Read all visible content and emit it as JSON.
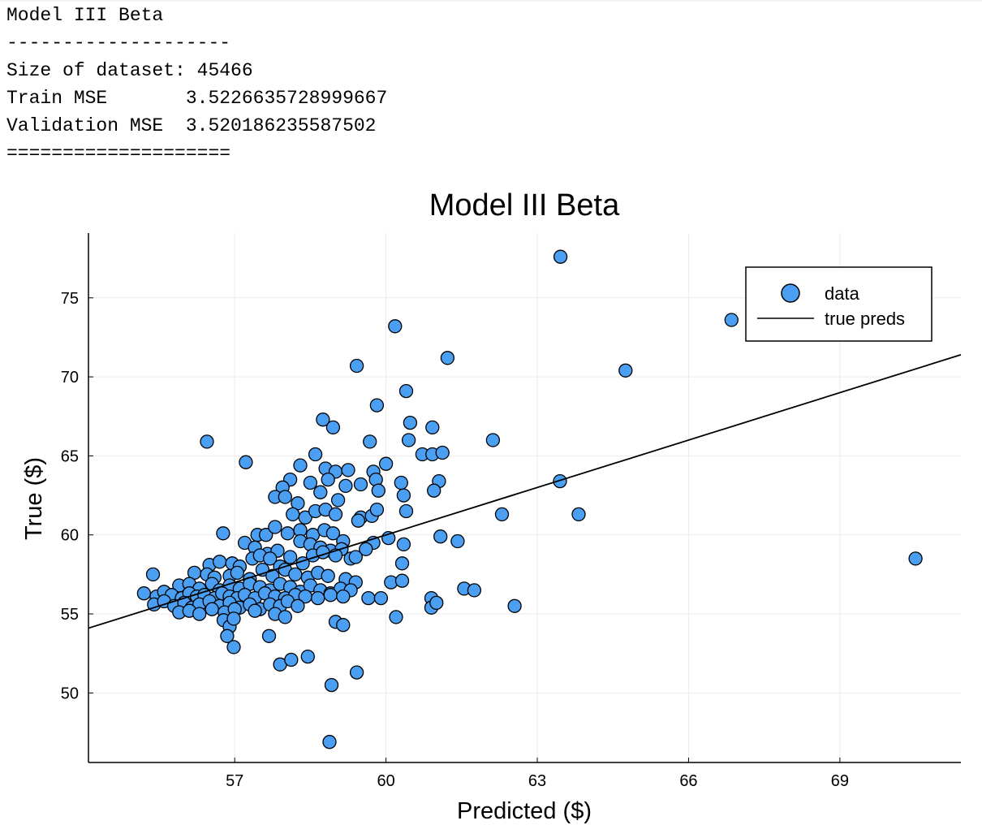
{
  "console": {
    "lines": [
      "Model III Beta",
      "--------------------",
      "Size of dataset: 45466",
      "Train MSE       3.5226635728999667",
      "Validation MSE  3.520186235587502",
      "===================="
    ]
  },
  "chart_data": {
    "type": "scatter",
    "title": "Model III Beta",
    "xlabel": "Predicted ($)",
    "ylabel": "True ($)",
    "xlim": [
      54.1,
      71.4
    ],
    "ylim": [
      45.6,
      79.1
    ],
    "xticks": [
      "57",
      "60",
      "63",
      "66",
      "69"
    ],
    "yticks": [
      "50",
      "55",
      "60",
      "65",
      "70",
      "75"
    ],
    "grid": true,
    "legend_position": "top-right",
    "colors": {
      "marker": "#4a9ff3",
      "line": "#000000",
      "grid": "#ebebeb"
    },
    "series": [
      {
        "name": "data",
        "kind": "scatter",
        "points": [
          [
            63.46,
            77.6
          ],
          [
            60.18,
            73.2
          ],
          [
            66.85,
            73.6
          ],
          [
            64.75,
            70.4
          ],
          [
            61.22,
            71.2
          ],
          [
            59.42,
            70.7
          ],
          [
            60.4,
            69.1
          ],
          [
            59.82,
            68.2
          ],
          [
            58.75,
            67.3
          ],
          [
            58.95,
            66.8
          ],
          [
            60.48,
            67.1
          ],
          [
            60.92,
            66.8
          ],
          [
            56.45,
            65.9
          ],
          [
            59.68,
            65.9
          ],
          [
            60.45,
            66.0
          ],
          [
            62.12,
            66.0
          ],
          [
            57.22,
            64.6
          ],
          [
            58.6,
            65.1
          ],
          [
            60.72,
            65.1
          ],
          [
            60.92,
            65.1
          ],
          [
            61.12,
            65.2
          ],
          [
            58.3,
            64.4
          ],
          [
            58.8,
            64.2
          ],
          [
            59.0,
            64.0
          ],
          [
            59.25,
            64.1
          ],
          [
            59.75,
            64.0
          ],
          [
            60.0,
            64.5
          ],
          [
            59.8,
            63.5
          ],
          [
            59.5,
            63.2
          ],
          [
            59.2,
            63.1
          ],
          [
            58.85,
            63.5
          ],
          [
            58.5,
            63.3
          ],
          [
            58.1,
            63.5
          ],
          [
            57.95,
            63.0
          ],
          [
            57.8,
            62.4
          ],
          [
            58.0,
            62.4
          ],
          [
            58.25,
            62.0
          ],
          [
            58.7,
            62.7
          ],
          [
            59.05,
            62.2
          ],
          [
            59.85,
            62.8
          ],
          [
            60.3,
            63.3
          ],
          [
            60.35,
            62.5
          ],
          [
            61.05,
            63.4
          ],
          [
            60.95,
            62.8
          ],
          [
            63.45,
            63.4
          ],
          [
            58.15,
            61.3
          ],
          [
            58.4,
            61.1
          ],
          [
            58.6,
            61.5
          ],
          [
            58.8,
            61.6
          ],
          [
            59.0,
            61.3
          ],
          [
            59.5,
            61.1
          ],
          [
            59.72,
            61.2
          ],
          [
            59.45,
            60.9
          ],
          [
            59.82,
            61.6
          ],
          [
            60.4,
            61.5
          ],
          [
            62.3,
            61.3
          ],
          [
            63.82,
            61.3
          ],
          [
            56.77,
            60.1
          ],
          [
            57.45,
            60.0
          ],
          [
            57.62,
            60.0
          ],
          [
            57.8,
            60.5
          ],
          [
            58.05,
            60.1
          ],
          [
            58.3,
            60.3
          ],
          [
            58.55,
            60.0
          ],
          [
            58.78,
            60.3
          ],
          [
            58.95,
            60.1
          ],
          [
            60.05,
            59.8
          ],
          [
            59.75,
            59.5
          ],
          [
            59.15,
            59.6
          ],
          [
            57.2,
            59.5
          ],
          [
            57.4,
            59.2
          ],
          [
            57.65,
            58.8
          ],
          [
            57.85,
            59.0
          ],
          [
            58.3,
            59.6
          ],
          [
            58.5,
            59.4
          ],
          [
            58.7,
            59.2
          ],
          [
            58.9,
            59.0
          ],
          [
            59.12,
            59.1
          ],
          [
            59.6,
            59.1
          ],
          [
            60.35,
            59.4
          ],
          [
            61.08,
            59.9
          ],
          [
            61.42,
            59.6
          ],
          [
            70.5,
            58.5
          ],
          [
            56.5,
            58.1
          ],
          [
            56.7,
            58.3
          ],
          [
            56.95,
            58.2
          ],
          [
            57.1,
            58.0
          ],
          [
            57.35,
            58.5
          ],
          [
            57.5,
            58.7
          ],
          [
            57.7,
            58.5
          ],
          [
            57.9,
            58.0
          ],
          [
            58.1,
            58.6
          ],
          [
            58.35,
            58.2
          ],
          [
            58.55,
            58.7
          ],
          [
            58.75,
            58.9
          ],
          [
            59.0,
            58.7
          ],
          [
            59.3,
            58.5
          ],
          [
            59.4,
            58.6
          ],
          [
            60.32,
            58.2
          ],
          [
            55.38,
            57.5
          ],
          [
            56.2,
            57.6
          ],
          [
            56.45,
            57.5
          ],
          [
            56.6,
            57.3
          ],
          [
            56.9,
            57.4
          ],
          [
            57.05,
            57.6
          ],
          [
            57.3,
            57.2
          ],
          [
            57.55,
            57.8
          ],
          [
            57.75,
            57.4
          ],
          [
            58.0,
            57.8
          ],
          [
            58.2,
            57.5
          ],
          [
            58.45,
            57.3
          ],
          [
            58.65,
            57.6
          ],
          [
            58.85,
            57.4
          ],
          [
            59.2,
            57.2
          ],
          [
            59.4,
            57.0
          ],
          [
            60.1,
            57.0
          ],
          [
            60.32,
            57.1
          ],
          [
            55.9,
            56.8
          ],
          [
            56.1,
            56.9
          ],
          [
            56.3,
            56.6
          ],
          [
            56.55,
            56.9
          ],
          [
            56.7,
            56.5
          ],
          [
            56.9,
            56.8
          ],
          [
            57.1,
            56.6
          ],
          [
            57.3,
            56.9
          ],
          [
            57.5,
            56.7
          ],
          [
            57.7,
            56.5
          ],
          [
            57.9,
            56.9
          ],
          [
            58.1,
            56.7
          ],
          [
            58.3,
            56.4
          ],
          [
            58.5,
            56.8
          ],
          [
            58.7,
            56.5
          ],
          [
            58.9,
            56.3
          ],
          [
            59.1,
            56.6
          ],
          [
            59.3,
            56.5
          ],
          [
            61.55,
            56.6
          ],
          [
            61.75,
            56.5
          ],
          [
            55.2,
            56.3
          ],
          [
            55.45,
            56.1
          ],
          [
            55.6,
            56.4
          ],
          [
            55.75,
            56.2
          ],
          [
            55.95,
            56.0
          ],
          [
            56.1,
            56.3
          ],
          [
            56.25,
            56.1
          ],
          [
            56.4,
            56.2
          ],
          [
            56.6,
            56.0
          ],
          [
            56.75,
            56.3
          ],
          [
            56.9,
            56.1
          ],
          [
            57.05,
            56.0
          ],
          [
            57.2,
            56.2
          ],
          [
            57.4,
            56.0
          ],
          [
            57.6,
            56.3
          ],
          [
            57.8,
            56.1
          ],
          [
            58.0,
            56.0
          ],
          [
            58.2,
            56.2
          ],
          [
            58.4,
            56.1
          ],
          [
            58.65,
            56.0
          ],
          [
            58.9,
            56.2
          ],
          [
            59.15,
            56.1
          ],
          [
            59.65,
            56.0
          ],
          [
            59.9,
            56.0
          ],
          [
            60.9,
            56.0
          ],
          [
            55.4,
            55.6
          ],
          [
            55.6,
            55.8
          ],
          [
            55.8,
            55.5
          ],
          [
            56.0,
            55.7
          ],
          [
            56.15,
            55.4
          ],
          [
            56.3,
            55.6
          ],
          [
            56.5,
            55.8
          ],
          [
            56.7,
            55.5
          ],
          [
            56.9,
            55.7
          ],
          [
            57.1,
            55.4
          ],
          [
            57.3,
            55.6
          ],
          [
            57.5,
            55.3
          ],
          [
            57.7,
            55.6
          ],
          [
            57.9,
            55.5
          ],
          [
            58.05,
            55.8
          ],
          [
            58.25,
            55.5
          ],
          [
            60.9,
            55.4
          ],
          [
            61.0,
            55.7
          ],
          [
            62.55,
            55.5
          ],
          [
            55.9,
            55.1
          ],
          [
            56.1,
            55.2
          ],
          [
            56.3,
            55.0
          ],
          [
            56.55,
            55.3
          ],
          [
            56.8,
            55.1
          ],
          [
            57.0,
            55.3
          ],
          [
            57.4,
            55.2
          ],
          [
            57.8,
            55.0
          ],
          [
            58.0,
            54.8
          ],
          [
            56.78,
            54.6
          ],
          [
            56.9,
            54.2
          ],
          [
            56.98,
            54.7
          ],
          [
            59.0,
            54.5
          ],
          [
            59.15,
            54.3
          ],
          [
            60.2,
            54.8
          ],
          [
            56.85,
            53.6
          ],
          [
            57.68,
            53.6
          ],
          [
            56.98,
            52.9
          ],
          [
            58.45,
            52.3
          ],
          [
            57.9,
            51.8
          ],
          [
            58.12,
            52.1
          ],
          [
            59.42,
            51.3
          ],
          [
            58.92,
            50.5
          ],
          [
            58.88,
            46.9
          ]
        ]
      },
      {
        "name": "true preds",
        "kind": "line",
        "x": [
          54.1,
          71.4
        ],
        "y": [
          54.1,
          71.4
        ]
      }
    ]
  }
}
